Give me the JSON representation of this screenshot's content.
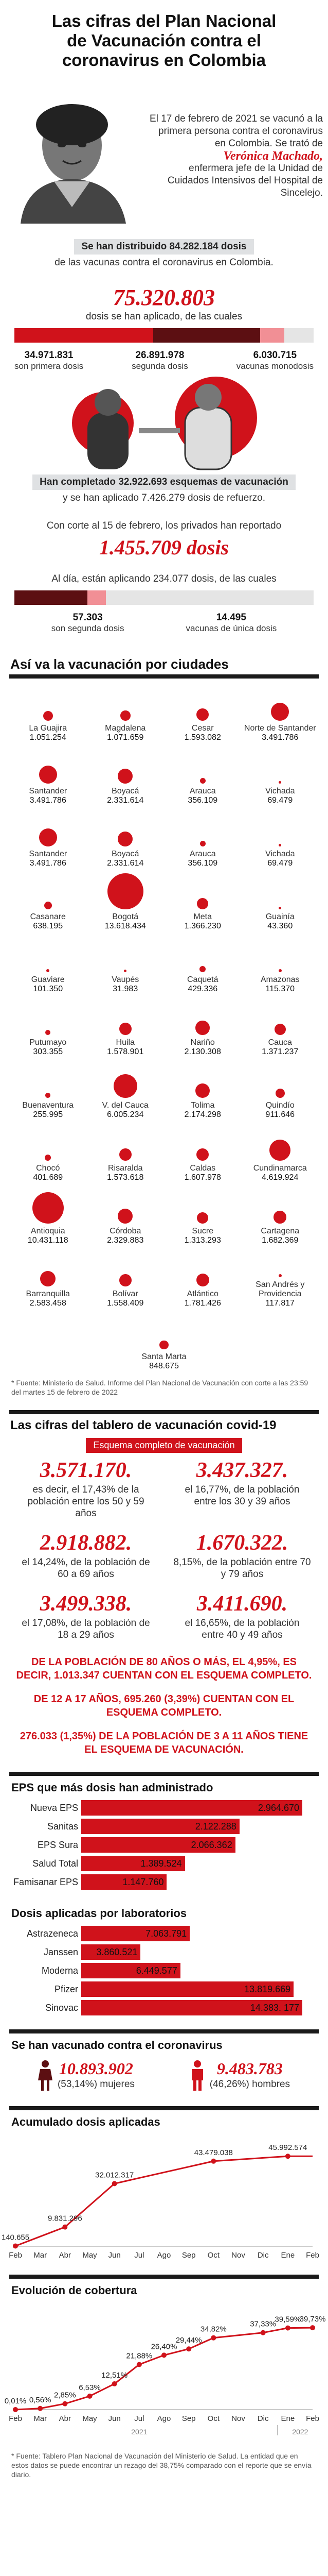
{
  "title": "Las cifras del Plan Nacional de Vacunación contra el coronavirus en Colombia",
  "intro": {
    "text": "El 17 de febrero de 2021 se vacunó a la primera persona contra el coronavirus en Colombia. Se trató de",
    "name": "Verónica Machado,",
    "role": "enfermera jefe de la Unidad de Cuidados Intensivos del Hospital de Sincelejo."
  },
  "distribuidas": {
    "label": "Se han distribuido 84.282.184 dosis",
    "sub": "de las vacunas contra el coronavirus en Colombia.",
    "aplicadas": "75.320.803",
    "aplicadas_sub": "dosis se han aplicado, de las cuales",
    "breakdown": [
      {
        "value": "34.971.831",
        "label": "son primera dosis",
        "share": 0.4643
      },
      {
        "value": "26.891.978",
        "label": "segunda dosis",
        "share": 0.357
      },
      {
        "value": "6.030.715",
        "label": "vacunas monodosis",
        "share": 0.0801
      }
    ]
  },
  "esquemas": {
    "label": "Han completado 32.922.693 esquemas de vacunación",
    "sub": "y se han aplicado 7.426.279 dosis de refuerzo."
  },
  "privados": {
    "text": "Con corte al 15 de febrero, los privados han reportado",
    "value": "1.455.709 dosis",
    "sub": "Al día, están aplicando 234.077 dosis, de las cuales",
    "breakdown": [
      {
        "value": "57.303",
        "label": "son segunda dosis",
        "share": 0.2448
      },
      {
        "value": "14.495",
        "label": "vacunas de única dosis",
        "share": 0.0619
      }
    ]
  },
  "ciudades": {
    "title": "Así va la vacunación por ciudades",
    "items": [
      {
        "name": "La Guajira",
        "value": "1.051.254",
        "n": 1051254
      },
      {
        "name": "Magdalena",
        "value": "1.071.659",
        "n": 1071659
      },
      {
        "name": "Cesar",
        "value": "1.593.082",
        "n": 1593082
      },
      {
        "name": "Norte de Santander",
        "value": "3.491.786",
        "n": 3491786
      },
      {
        "name": "Santander",
        "value": "3.491.786",
        "n": 3491786
      },
      {
        "name": "Boyacá",
        "value": "2.331.614",
        "n": 2331614
      },
      {
        "name": "Arauca",
        "value": "356.109",
        "n": 356109
      },
      {
        "name": "Vichada",
        "value": "69.479",
        "n": 69479
      },
      {
        "name": "Santander",
        "value": "3.491.786",
        "n": 3491786
      },
      {
        "name": "Boyacá",
        "value": "2.331.614",
        "n": 2331614
      },
      {
        "name": "Arauca",
        "value": "356.109",
        "n": 356109
      },
      {
        "name": "Vichada",
        "value": "69.479",
        "n": 69479
      },
      {
        "name": "Casanare",
        "value": "638.195",
        "n": 638195
      },
      {
        "name": "Bogotá",
        "value": "13.618.434",
        "n": 13618434
      },
      {
        "name": "Meta",
        "value": "1.366.230",
        "n": 1366230
      },
      {
        "name": "Guainía",
        "value": "43.360",
        "n": 43360
      },
      {
        "name": "Guaviare",
        "value": "101.350",
        "n": 101350
      },
      {
        "name": "Vaupés",
        "value": "31.983",
        "n": 31983
      },
      {
        "name": "Caquetá",
        "value": "429.336",
        "n": 429336
      },
      {
        "name": "Amazonas",
        "value": "115.370",
        "n": 115370
      },
      {
        "name": "Putumayo",
        "value": "303.355",
        "n": 303355
      },
      {
        "name": "Huila",
        "value": "1.578.901",
        "n": 1578901
      },
      {
        "name": "Nariño",
        "value": "2.130.308",
        "n": 2130308
      },
      {
        "name": "Cauca",
        "value": "1.371.237",
        "n": 1371237
      },
      {
        "name": "Buenaventura",
        "value": "255.995",
        "n": 255995
      },
      {
        "name": "V. del Cauca",
        "value": "6.005.234",
        "n": 6005234
      },
      {
        "name": "Tolima",
        "value": "2.174.298",
        "n": 2174298
      },
      {
        "name": "Quindío",
        "value": "911.646",
        "n": 911646
      },
      {
        "name": "Chocó",
        "value": "401.689",
        "n": 401689
      },
      {
        "name": "Risaralda",
        "value": "1.573.618",
        "n": 1573618
      },
      {
        "name": "Caldas",
        "value": "1.607.978",
        "n": 1607978
      },
      {
        "name": "Cundinamarca",
        "value": "4.619.924",
        "n": 4619924
      },
      {
        "name": "Antioquia",
        "value": "10.431.118",
        "n": 10431118
      },
      {
        "name": "Córdoba",
        "value": "2.329.883",
        "n": 2329883
      },
      {
        "name": "Sucre",
        "value": "1.313.293",
        "n": 1313293
      },
      {
        "name": "Cartagena",
        "value": "1.682.369",
        "n": 1682369
      },
      {
        "name": "Barranquilla",
        "value": "2.583.458",
        "n": 2583458
      },
      {
        "name": "Bolívar",
        "value": "1.558.409",
        "n": 1558409
      },
      {
        "name": "Atlántico",
        "value": "1.781.426",
        "n": 1781426
      },
      {
        "name": "San Andrés y Providencia",
        "value": "117.817",
        "n": 117817
      },
      {
        "name": "Santa Marta",
        "value": "848.675",
        "n": 848675
      }
    ],
    "footnote": "* Fuente: Ministerio de Salud. Informe del Plan Nacional de Vacunación con corte a las 23:59 del martes 15 de febrero de 2022"
  },
  "tablero": {
    "title": "Las cifras del tablero de vacunación covid-19",
    "esquema_label": "Esquema completo de vacunación",
    "items": [
      {
        "value": "3.571.170.",
        "text": "es decir, el 17,43% de la población entre los 50 y 59 años"
      },
      {
        "value": "3.437.327.",
        "text": "el 16,77%, de la población entre los 30 y 39 años"
      },
      {
        "value": "2.918.882.",
        "text": "el 14,24%, de la población de 60 a 69 años"
      },
      {
        "value": "1.670.322.",
        "text": "8,15%, de la población entre 70 y 79 años"
      },
      {
        "value": "3.499.338.",
        "text": "el 17,08%, de la población de 18 a 29 años"
      },
      {
        "value": "3.411.690.",
        "text": "el 16,65%, de la población entre 40 y 49 años"
      }
    ],
    "notes": [
      "DE LA POBLACIÓN DE 80 AÑOS O MÁS, EL 4,95%, ES DECIR, 1.013.347 CUENTAN CON EL ESQUEMA COMPLETO.",
      "DE 12 A 17 AÑOS, 695.260 (3,39%) CUENTAN CON EL ESQUEMA COMPLETO.",
      "276.033 (1,35%) DE LA POBLACIÓN DE 3 A 11 AÑOS TIENE EL ESQUEMA DE VACUNACIÓN."
    ]
  },
  "eps": {
    "title": "EPS que más dosis han administrado",
    "items": [
      {
        "label": "Nueva EPS",
        "value": "2.964.670",
        "n": 2964670
      },
      {
        "label": "Sanitas",
        "value": "2.122.288",
        "n": 2122288
      },
      {
        "label": "EPS Sura",
        "value": "2.066.362",
        "n": 2066362
      },
      {
        "label": "Salud Total",
        "value": "1.389.524",
        "n": 1389524
      },
      {
        "label": "Famisanar EPS",
        "value": "1.147.760",
        "n": 1147760
      }
    ]
  },
  "laboratorios": {
    "title": "Dosis aplicadas por laboratorios",
    "items": [
      {
        "label": "Astrazeneca",
        "value": "7.063.791",
        "n": 7063791
      },
      {
        "label": "Janssen",
        "value": "3.860.521",
        "n": 3860521
      },
      {
        "label": "Moderna",
        "value": "6.449.577",
        "n": 6449577
      },
      {
        "label": "Pfizer",
        "value": "13.819.669",
        "n": 13819669
      },
      {
        "label": "Sinovac",
        "value": "14.383. 177",
        "n": 14383177
      }
    ]
  },
  "genero": {
    "title": "Se han vacunado contra el coronavirus",
    "items": [
      {
        "value": "10.893.902",
        "label": "(53,14%) mujeres"
      },
      {
        "value": "9.483.783",
        "label": "(46,26%) hombres"
      }
    ]
  },
  "acumulado": {
    "title": "Acumulado dosis aplicadas",
    "months": [
      "Feb",
      "Mar",
      "Abr",
      "May",
      "Jun",
      "Jul",
      "Ago",
      "Sep",
      "Oct",
      "Nov",
      "Dic",
      "Ene",
      "Feb"
    ],
    "values": [
      140655,
      null,
      9831296,
      null,
      32012317,
      null,
      null,
      null,
      43479038,
      null,
      null,
      45992574,
      null
    ],
    "labels": [
      "140.655",
      "",
      "9.831.296",
      "",
      "32.012.317",
      "",
      "",
      "",
      "43.479.038",
      "",
      "",
      "45.992.574",
      ""
    ]
  },
  "cobertura": {
    "title": "Evolución de cobertura",
    "months": [
      "Feb",
      "Mar",
      "Abr",
      "May",
      "Jun",
      "Jul",
      "Ago",
      "Sep",
      "Oct",
      "Nov",
      "Dic",
      "Ene",
      "Feb"
    ],
    "values": [
      0.01,
      0.56,
      2.85,
      6.53,
      12.51,
      21.88,
      26.4,
      29.44,
      34.82,
      null,
      37.33,
      39.59,
      39.73
    ],
    "labels": [
      "0,01%",
      "0,56%",
      "2,85%",
      "6,53%",
      "12,51%",
      "21,88%",
      "26,40%",
      "29,44%",
      "34,82%",
      "",
      "37,33%",
      "39,59%",
      "39,73%"
    ],
    "years": [
      "2021",
      "2022"
    ]
  },
  "footnote2": "* Fuente: Tablero Plan Nacional de Vacunación del Ministerio de Salud. La entidad que en estos datos se puede encontrar un rezago del 38,75% comparado con el reporte que se envía diario.",
  "colors": {
    "accent": "#d0121b",
    "secondary": "#5c0f12",
    "neutral": "#e5e5e5"
  }
}
